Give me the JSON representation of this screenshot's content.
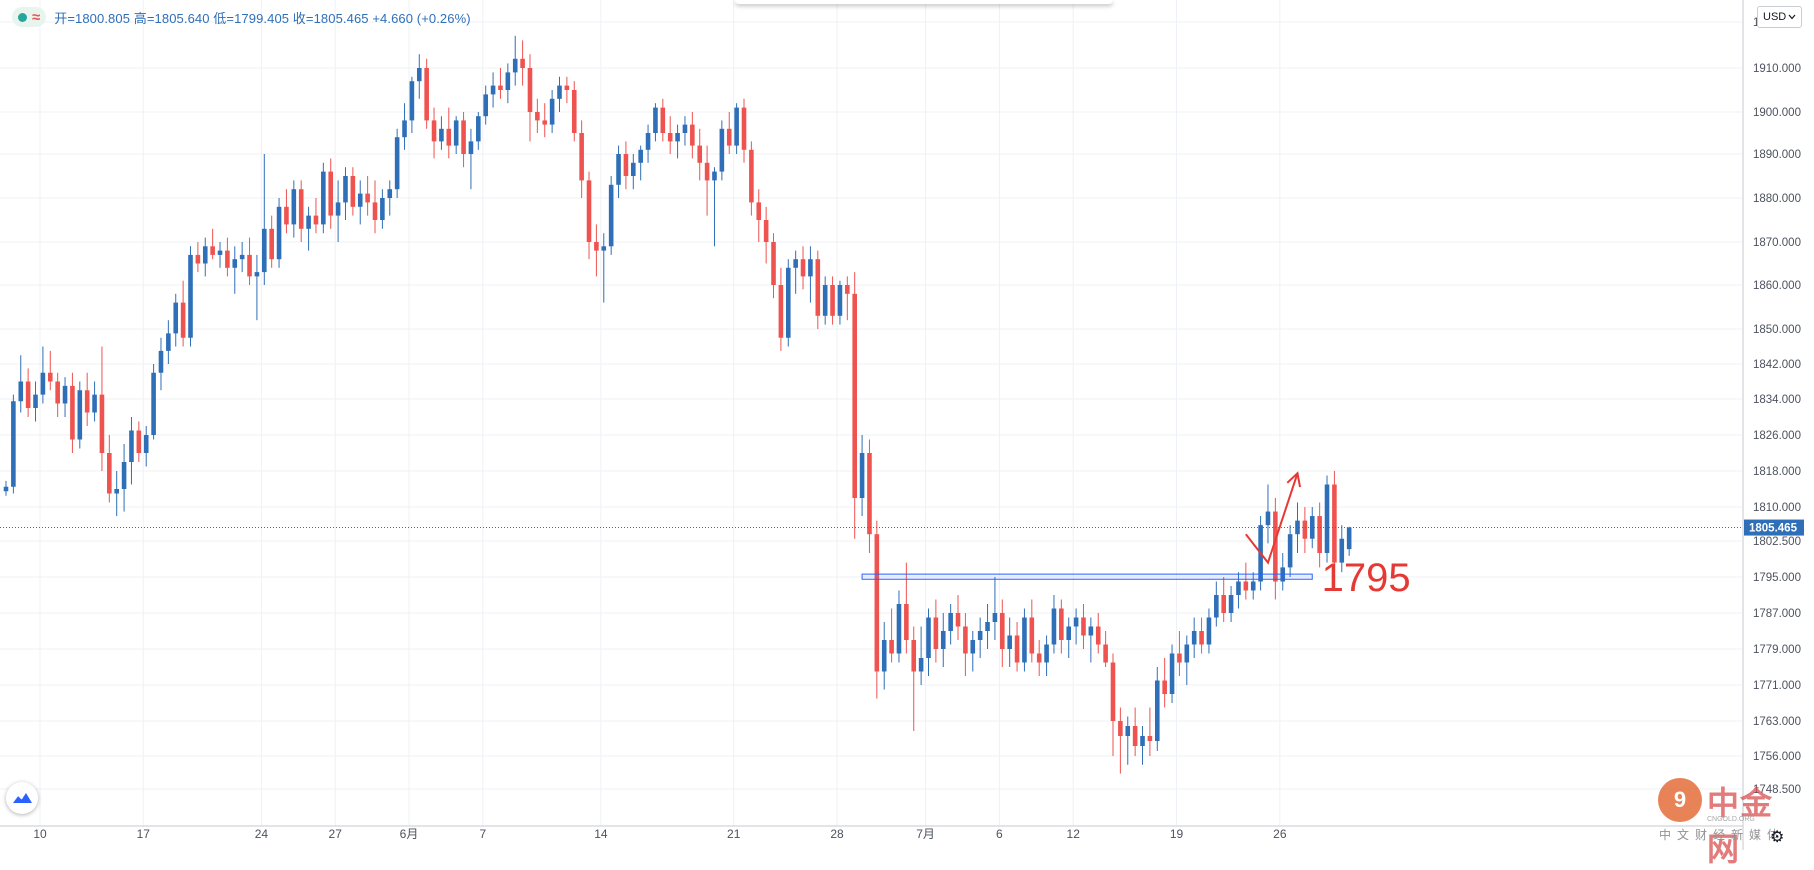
{
  "symbol_bar": {
    "status_icon": "green-dot-icon",
    "wave_icon": "≈",
    "ohlc": "开=1800.805 高=1805.640 低=1799.405 收=1805.465 +4.660 (+0.26%)"
  },
  "currency": {
    "label": "USD",
    "icon": "chevron-down-icon"
  },
  "current_price": "1805.465",
  "annotation": {
    "level_text": "1795",
    "color": "#e53935"
  },
  "watermark": {
    "title": "中金网",
    "url": "CNGOLD.ORG",
    "subtitle": "中文财经新媒体",
    "logo_text": "9"
  },
  "colors": {
    "up": "#2f6fb8",
    "down": "#ef5350",
    "grid": "#eef1f6",
    "price_line": "#2f6fb8"
  },
  "chart_data": {
    "type": "candlestick",
    "title": "",
    "y_ticks": [
      "1920.000",
      "1910.000",
      "1900.000",
      "1890.000",
      "1880.000",
      "1870.000",
      "1860.000",
      "1850.000",
      "1842.000",
      "1834.000",
      "1826.000",
      "1818.000",
      "1810.000",
      "1802.500",
      "1795.000",
      "1787.000",
      "1779.000",
      "1771.000",
      "1763.000",
      "1756.000",
      "1748.500"
    ],
    "x_ticks": [
      "10",
      "17",
      "24",
      "27",
      "6月",
      "7",
      "14",
      "21",
      "28",
      "7月",
      "6",
      "12",
      "19",
      "26"
    ],
    "x_tick_positions": [
      0,
      14,
      30,
      40,
      50,
      60,
      76,
      94,
      108,
      120,
      130,
      140,
      154,
      168
    ],
    "ylim": [
      1747,
      1922
    ],
    "current_price": 1805.465,
    "support_level": 1795,
    "candles": [
      [
        1813.5,
        1815.8,
        1812.5,
        1814.5
      ],
      [
        1814.5,
        1835.0,
        1813.0,
        1833.5
      ],
      [
        1833.5,
        1844.0,
        1831.0,
        1838.0
      ],
      [
        1838.0,
        1841.0,
        1830.0,
        1832.0
      ],
      [
        1832.0,
        1838.0,
        1829.0,
        1835.0
      ],
      [
        1835.0,
        1846.0,
        1833.0,
        1840.0
      ],
      [
        1840.0,
        1845.0,
        1836.0,
        1838.0
      ],
      [
        1838.0,
        1840.0,
        1830.0,
        1833.0
      ],
      [
        1833.0,
        1839.0,
        1830.0,
        1837.0
      ],
      [
        1837.0,
        1840.0,
        1822.0,
        1825.0
      ],
      [
        1825.0,
        1838.0,
        1823.0,
        1836.0
      ],
      [
        1836.0,
        1840.0,
        1828.0,
        1831.0
      ],
      [
        1831.0,
        1838.0,
        1829.0,
        1835.0
      ],
      [
        1835.0,
        1846.0,
        1818.0,
        1822.0
      ],
      [
        1822.0,
        1826.0,
        1811.0,
        1813.0
      ],
      [
        1813.0,
        1818.0,
        1808.0,
        1814.0
      ],
      [
        1814.0,
        1824.0,
        1809.0,
        1820.0
      ],
      [
        1820.0,
        1830.0,
        1815.0,
        1827.0
      ],
      [
        1827.0,
        1829.0,
        1820.0,
        1822.0
      ],
      [
        1822.0,
        1828.0,
        1819.0,
        1826.0
      ],
      [
        1826.0,
        1842.0,
        1825.0,
        1840.0
      ],
      [
        1840.0,
        1848.0,
        1836.0,
        1845.0
      ],
      [
        1845.0,
        1852.0,
        1842.0,
        1849.0
      ],
      [
        1849.0,
        1858.0,
        1846.0,
        1856.0
      ],
      [
        1856.0,
        1861.0,
        1846.0,
        1848.0
      ],
      [
        1848.0,
        1869.0,
        1846.0,
        1867.0
      ],
      [
        1867.0,
        1870.0,
        1863.0,
        1865.0
      ],
      [
        1865.0,
        1871.0,
        1862.0,
        1869.0
      ],
      [
        1869.0,
        1873.0,
        1866.0,
        1867.0
      ],
      [
        1867.0,
        1870.0,
        1864.0,
        1868.0
      ],
      [
        1868.0,
        1871.0,
        1862.0,
        1864.0
      ],
      [
        1864.0,
        1869.0,
        1858.0,
        1866.0
      ],
      [
        1866.0,
        1870.0,
        1863.0,
        1867.0
      ],
      [
        1867.0,
        1871.0,
        1860.0,
        1862.0
      ],
      [
        1862.0,
        1867.0,
        1852.0,
        1863.0
      ],
      [
        1863.0,
        1890.0,
        1860.0,
        1873.0
      ],
      [
        1873.0,
        1876.0,
        1864.0,
        1866.0
      ],
      [
        1866.0,
        1880.0,
        1864.0,
        1878.0
      ],
      [
        1878.0,
        1882.0,
        1872.0,
        1874.0
      ],
      [
        1874.0,
        1884.0,
        1871.0,
        1882.0
      ],
      [
        1882.0,
        1884.0,
        1870.0,
        1873.0
      ],
      [
        1873.0,
        1878.0,
        1868.0,
        1876.0
      ],
      [
        1876.0,
        1880.0,
        1872.0,
        1874.0
      ],
      [
        1874.0,
        1888.0,
        1872.0,
        1886.0
      ],
      [
        1886.0,
        1889.0,
        1873.0,
        1876.0
      ],
      [
        1876.0,
        1884.0,
        1870.0,
        1879.0
      ],
      [
        1879.0,
        1887.0,
        1875.0,
        1885.0
      ],
      [
        1885.0,
        1887.0,
        1876.0,
        1878.0
      ],
      [
        1878.0,
        1884.0,
        1874.0,
        1881.0
      ],
      [
        1881.0,
        1885.0,
        1876.0,
        1879.0
      ],
      [
        1879.0,
        1884.0,
        1872.0,
        1875.0
      ],
      [
        1875.0,
        1882.0,
        1873.0,
        1880.0
      ],
      [
        1880.0,
        1884.0,
        1876.0,
        1882.0
      ],
      [
        1882.0,
        1896.0,
        1880.0,
        1894.0
      ],
      [
        1894.0,
        1902.0,
        1891.0,
        1898.0
      ],
      [
        1898.0,
        1908.0,
        1895.0,
        1907.0
      ],
      [
        1907.0,
        1913.0,
        1903.0,
        1910.0
      ],
      [
        1910.0,
        1912.0,
        1896.0,
        1898.0
      ],
      [
        1898.0,
        1901.0,
        1889.0,
        1893.0
      ],
      [
        1893.0,
        1899.0,
        1891.0,
        1896.0
      ],
      [
        1896.0,
        1901.0,
        1889.0,
        1892.0
      ],
      [
        1892.0,
        1899.0,
        1890.0,
        1898.0
      ],
      [
        1898.0,
        1900.0,
        1887.0,
        1890.0
      ],
      [
        1890.0,
        1896.0,
        1882.0,
        1893.0
      ],
      [
        1893.0,
        1900.0,
        1891.0,
        1899.0
      ],
      [
        1899.0,
        1906.0,
        1897.0,
        1904.0
      ],
      [
        1904.0,
        1909.0,
        1901.0,
        1906.0
      ],
      [
        1906.0,
        1910.0,
        1903.0,
        1905.0
      ],
      [
        1905.0,
        1911.0,
        1902.0,
        1909.0
      ],
      [
        1909.0,
        1917.0,
        1906.0,
        1912.0
      ],
      [
        1912.0,
        1916.0,
        1906.0,
        1910.0
      ],
      [
        1910.0,
        1913.0,
        1893.0,
        1900.0
      ],
      [
        1900.0,
        1903.0,
        1895.0,
        1898.0
      ],
      [
        1898.0,
        1902.0,
        1894.0,
        1897.0
      ],
      [
        1897.0,
        1905.0,
        1895.0,
        1903.0
      ],
      [
        1903.0,
        1908.0,
        1900.0,
        1906.0
      ],
      [
        1906.0,
        1908.0,
        1902.0,
        1905.0
      ],
      [
        1905.0,
        1907.0,
        1893.0,
        1895.0
      ],
      [
        1895.0,
        1898.0,
        1880.0,
        1884.0
      ],
      [
        1884.0,
        1886.0,
        1866.0,
        1870.0
      ],
      [
        1870.0,
        1874.0,
        1862.0,
        1868.0
      ],
      [
        1868.0,
        1872.0,
        1856.0,
        1869.0
      ],
      [
        1869.0,
        1885.0,
        1867.0,
        1883.0
      ],
      [
        1883.0,
        1892.0,
        1880.0,
        1890.0
      ],
      [
        1890.0,
        1893.0,
        1882.0,
        1885.0
      ],
      [
        1885.0,
        1890.0,
        1882.0,
        1888.0
      ],
      [
        1888.0,
        1892.0,
        1884.0,
        1891.0
      ],
      [
        1891.0,
        1897.0,
        1888.0,
        1895.0
      ],
      [
        1895.0,
        1902.0,
        1893.0,
        1901.0
      ],
      [
        1901.0,
        1903.0,
        1893.0,
        1895.0
      ],
      [
        1895.0,
        1899.0,
        1890.0,
        1893.0
      ],
      [
        1893.0,
        1897.0,
        1889.0,
        1895.0
      ],
      [
        1895.0,
        1899.0,
        1892.0,
        1897.0
      ],
      [
        1897.0,
        1900.0,
        1889.0,
        1892.0
      ],
      [
        1892.0,
        1896.0,
        1884.0,
        1888.0
      ],
      [
        1888.0,
        1892.0,
        1876.0,
        1884.0
      ],
      [
        1884.0,
        1887.0,
        1869.0,
        1886.0
      ],
      [
        1886.0,
        1898.0,
        1884.0,
        1896.0
      ],
      [
        1896.0,
        1900.0,
        1890.0,
        1892.0
      ],
      [
        1892.0,
        1902.0,
        1890.0,
        1901.0
      ],
      [
        1901.0,
        1903.0,
        1888.0,
        1891.0
      ],
      [
        1891.0,
        1893.0,
        1876.0,
        1879.0
      ],
      [
        1879.0,
        1882.0,
        1870.0,
        1875.0
      ],
      [
        1875.0,
        1878.0,
        1865.0,
        1870.0
      ],
      [
        1870.0,
        1872.0,
        1857.0,
        1860.0
      ],
      [
        1860.0,
        1864.0,
        1845.0,
        1848.0
      ],
      [
        1848.0,
        1866.0,
        1846.0,
        1864.0
      ],
      [
        1864.0,
        1868.0,
        1858.0,
        1866.0
      ],
      [
        1866.0,
        1869.0,
        1859.0,
        1862.0
      ],
      [
        1862.0,
        1869.0,
        1856.0,
        1866.0
      ],
      [
        1866.0,
        1868.0,
        1850.0,
        1853.0
      ],
      [
        1853.0,
        1862.0,
        1851.0,
        1860.0
      ],
      [
        1860.0,
        1862.0,
        1851.0,
        1853.0
      ],
      [
        1853.0,
        1861.0,
        1851.0,
        1860.0
      ],
      [
        1860.0,
        1862.0,
        1852.0,
        1858.0
      ],
      [
        1858.0,
        1863.0,
        1803.0,
        1812.0
      ],
      [
        1812.0,
        1826.0,
        1808.0,
        1822.0
      ],
      [
        1822.0,
        1825.0,
        1800.0,
        1804.0
      ],
      [
        1804.0,
        1807.0,
        1768.0,
        1774.0
      ],
      [
        1774.0,
        1785.0,
        1770.0,
        1781.0
      ],
      [
        1781.0,
        1788.0,
        1776.0,
        1778.0
      ],
      [
        1778.0,
        1792.0,
        1776.0,
        1789.0
      ],
      [
        1789.0,
        1798.0,
        1778.0,
        1781.0
      ],
      [
        1781.0,
        1784.0,
        1761.0,
        1774.0
      ],
      [
        1774.0,
        1784.0,
        1771.0,
        1777.0
      ],
      [
        1777.0,
        1788.0,
        1773.0,
        1786.0
      ],
      [
        1786.0,
        1790.0,
        1776.0,
        1779.0
      ],
      [
        1779.0,
        1787.0,
        1775.0,
        1783.0
      ],
      [
        1783.0,
        1789.0,
        1780.0,
        1787.0
      ],
      [
        1787.0,
        1791.0,
        1781.0,
        1784.0
      ],
      [
        1784.0,
        1787.0,
        1773.0,
        1778.0
      ],
      [
        1778.0,
        1783.0,
        1774.0,
        1781.0
      ],
      [
        1781.0,
        1786.0,
        1777.0,
        1783.0
      ],
      [
        1783.0,
        1789.0,
        1779.0,
        1785.0
      ],
      [
        1785.0,
        1795.0,
        1781.0,
        1787.0
      ],
      [
        1787.0,
        1790.0,
        1775.0,
        1779.0
      ],
      [
        1779.0,
        1786.0,
        1775.0,
        1782.0
      ],
      [
        1782.0,
        1785.0,
        1774.0,
        1776.0
      ],
      [
        1776.0,
        1788.0,
        1774.0,
        1786.0
      ],
      [
        1786.0,
        1790.0,
        1776.0,
        1778.0
      ],
      [
        1778.0,
        1781.0,
        1773.0,
        1776.0
      ],
      [
        1776.0,
        1782.0,
        1773.0,
        1780.0
      ],
      [
        1780.0,
        1791.0,
        1778.0,
        1788.0
      ],
      [
        1788.0,
        1790.0,
        1778.0,
        1781.0
      ],
      [
        1781.0,
        1786.0,
        1777.0,
        1784.0
      ],
      [
        1784.0,
        1788.0,
        1780.0,
        1786.0
      ],
      [
        1786.0,
        1789.0,
        1779.0,
        1782.0
      ],
      [
        1782.0,
        1786.0,
        1776.0,
        1784.0
      ],
      [
        1784.0,
        1787.0,
        1778.0,
        1780.0
      ],
      [
        1780.0,
        1783.0,
        1775.0,
        1776.0
      ],
      [
        1776.0,
        1778.0,
        1756.0,
        1763.0
      ],
      [
        1763.0,
        1766.0,
        1752.0,
        1760.0
      ],
      [
        1760.0,
        1764.0,
        1754.0,
        1762.0
      ],
      [
        1762.0,
        1766.0,
        1756.0,
        1758.0
      ],
      [
        1758.0,
        1762.0,
        1754.0,
        1760.0
      ],
      [
        1760.0,
        1766.0,
        1756.0,
        1759.0
      ],
      [
        1759.0,
        1775.0,
        1757.0,
        1772.0
      ],
      [
        1772.0,
        1777.0,
        1766.0,
        1769.0
      ],
      [
        1769.0,
        1780.0,
        1767.0,
        1778.0
      ],
      [
        1778.0,
        1783.0,
        1773.0,
        1776.0
      ],
      [
        1776.0,
        1782.0,
        1771.0,
        1780.0
      ],
      [
        1780.0,
        1786.0,
        1777.0,
        1783.0
      ],
      [
        1783.0,
        1786.0,
        1778.0,
        1780.0
      ],
      [
        1780.0,
        1788.0,
        1778.0,
        1786.0
      ],
      [
        1786.0,
        1794.0,
        1784.0,
        1791.0
      ],
      [
        1791.0,
        1795.0,
        1785.0,
        1787.0
      ],
      [
        1787.0,
        1793.0,
        1785.0,
        1791.0
      ],
      [
        1791.0,
        1796.0,
        1788.0,
        1794.0
      ],
      [
        1794.0,
        1798.0,
        1790.0,
        1792.0
      ],
      [
        1792.0,
        1796.0,
        1790.0,
        1794.0
      ],
      [
        1794.0,
        1808.0,
        1792.0,
        1806.0
      ],
      [
        1806.0,
        1815.0,
        1802.0,
        1809.0
      ],
      [
        1809.0,
        1812.0,
        1790.0,
        1794.0
      ],
      [
        1794.0,
        1800.0,
        1792.0,
        1797.0
      ],
      [
        1797.0,
        1806.0,
        1795.0,
        1804.0
      ],
      [
        1804.0,
        1811.0,
        1800.0,
        1807.0
      ],
      [
        1807.0,
        1810.0,
        1800.0,
        1803.0
      ],
      [
        1803.0,
        1810.0,
        1801.0,
        1808.0
      ],
      [
        1808.0,
        1811.0,
        1797.0,
        1800.0
      ],
      [
        1800.0,
        1817.0,
        1798.0,
        1815.0
      ],
      [
        1815.0,
        1818.0,
        1794.0,
        1798.0
      ],
      [
        1798.0,
        1806.0,
        1796.0,
        1803.0
      ],
      [
        1800.805,
        1805.64,
        1799.405,
        1805.465
      ]
    ],
    "annotations": [
      {
        "type": "rectangle",
        "y_top": 1795.6,
        "y_bottom": 1794.5,
        "x_start": 116,
        "x_end": 177
      },
      {
        "type": "arrow",
        "points": [
          [
            168,
            1804.0
          ],
          [
            171,
            1798.0
          ],
          [
            175,
            1817.5
          ]
        ]
      },
      {
        "type": "text",
        "text": "1795",
        "x": 178,
        "y": 1795
      }
    ]
  }
}
